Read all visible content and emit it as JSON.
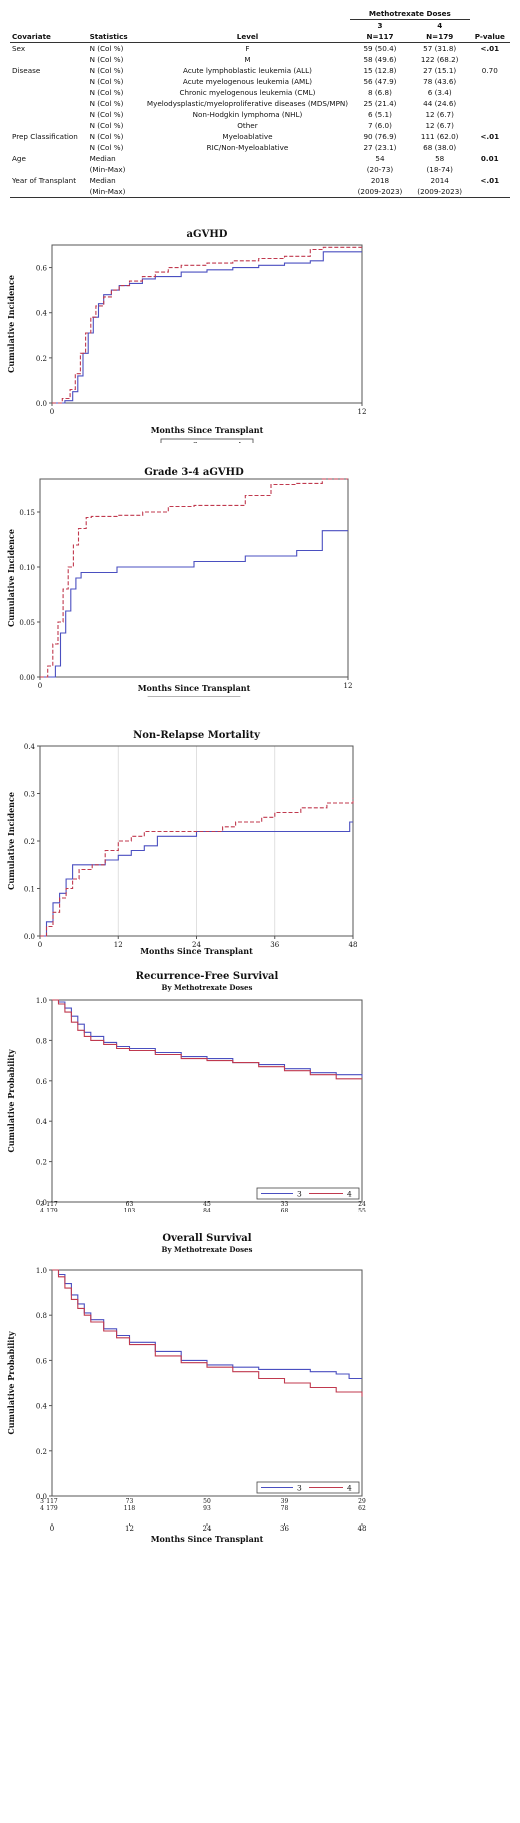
{
  "table": {
    "dose_header": "Methotrexate Doses",
    "col_covariate": "Covariate",
    "col_statistics": "Statistics",
    "col_level": "Level",
    "col_a_dose": "3",
    "col_a_n": "N=117",
    "col_b_dose": "4",
    "col_b_n": "N=179",
    "col_p": "P-value",
    "rows": [
      {
        "cov": "Sex",
        "stat": "N (Col %)",
        "level": "F",
        "a": "59 (50.4)",
        "b": "57 (31.8)",
        "p": "<.01",
        "pbold": true
      },
      {
        "cov": "",
        "stat": "N (Col %)",
        "level": "M",
        "a": "58 (49.6)",
        "b": "122 (68.2)",
        "p": "",
        "pbold": false
      },
      {
        "cov": "Disease",
        "stat": "N (Col %)",
        "level": "Acute lymphoblastic leukemia (ALL)",
        "a": "15 (12.8)",
        "b": "27 (15.1)",
        "p": "0.70",
        "pbold": false
      },
      {
        "cov": "",
        "stat": "N (Col %)",
        "level": "Acute myelogenous leukemia (AML)",
        "a": "56 (47.9)",
        "b": "78 (43.6)",
        "p": "",
        "pbold": false
      },
      {
        "cov": "",
        "stat": "N (Col %)",
        "level": "Chronic myelogenous leukemia (CML)",
        "a": "8 (6.8)",
        "b": "6 (3.4)",
        "p": "",
        "pbold": false
      },
      {
        "cov": "",
        "stat": "N (Col %)",
        "level": "Myelodysplastic/myeloproliferative diseases (MDS/MPN)",
        "a": "25 (21.4)",
        "b": "44 (24.6)",
        "p": "",
        "pbold": false
      },
      {
        "cov": "",
        "stat": "N (Col %)",
        "level": "Non-Hodgkin lymphoma (NHL)",
        "a": "6 (5.1)",
        "b": "12 (6.7)",
        "p": "",
        "pbold": false
      },
      {
        "cov": "",
        "stat": "N (Col %)",
        "level": "Other",
        "a": "7 (6.0)",
        "b": "12 (6.7)",
        "p": "",
        "pbold": false
      },
      {
        "cov": "Prep Classification",
        "stat": "N (Col %)",
        "level": "Myeloablative",
        "a": "90 (76.9)",
        "b": "111 (62.0)",
        "p": "<.01",
        "pbold": true
      },
      {
        "cov": "",
        "stat": "N (Col %)",
        "level": "RIC/Non-Myeloablative",
        "a": "27 (23.1)",
        "b": "68 (38.0)",
        "p": "",
        "pbold": false
      },
      {
        "cov": "Age",
        "stat": "Median",
        "level": "",
        "a": "54",
        "b": "58",
        "p": "0.01",
        "pbold": true
      },
      {
        "cov": "",
        "stat": "(Min-Max)",
        "level": "",
        "a": "(20-73)",
        "b": "(18-74)",
        "p": "",
        "pbold": false
      },
      {
        "cov": "Year of Transplant",
        "stat": "Median",
        "level": "",
        "a": "2018",
        "b": "2014",
        "p": "<.01",
        "pbold": true
      },
      {
        "cov": "",
        "stat": "(Min-Max)",
        "level": "",
        "a": "(2009-2023)",
        "b": "(2009-2023)",
        "p": "",
        "pbold": false
      }
    ]
  },
  "colors": {
    "dose3": "#4a4fc0",
    "dose4": "#c0394e",
    "gridline": "#d8d8d8"
  },
  "chart_data": [
    {
      "type": "line",
      "title": "aGVHD",
      "subtitle": "",
      "xlabel": "Months Since Transplant",
      "ylabel": "Cumulative Incidence",
      "xlim": [
        0,
        12
      ],
      "ylim": [
        0,
        0.7
      ],
      "xticks": [
        0,
        12
      ],
      "yticks": [
        0.0,
        0.2,
        0.4,
        0.6
      ],
      "ytick_labels": [
        "0.0",
        "0.2",
        "0.4",
        "0.6"
      ],
      "grid": false,
      "legend": {
        "placement": "below",
        "entries": [
          "3",
          "4"
        ]
      },
      "series": [
        {
          "name": "3",
          "style": "solid",
          "x": [
            0,
            0.5,
            0.8,
            1.0,
            1.2,
            1.4,
            1.6,
            1.8,
            2.0,
            2.3,
            2.6,
            3.0,
            3.5,
            4.0,
            5.0,
            6.0,
            7.0,
            8.0,
            9.0,
            10.0,
            10.5,
            12
          ],
          "y": [
            0,
            0.01,
            0.05,
            0.12,
            0.22,
            0.31,
            0.38,
            0.44,
            0.48,
            0.5,
            0.52,
            0.53,
            0.55,
            0.56,
            0.58,
            0.59,
            0.6,
            0.61,
            0.62,
            0.63,
            0.67,
            0.67
          ]
        },
        {
          "name": "4",
          "style": "dashed",
          "x": [
            0,
            0.4,
            0.7,
            0.9,
            1.1,
            1.3,
            1.5,
            1.7,
            2.0,
            2.3,
            2.6,
            3.0,
            3.5,
            4.0,
            4.5,
            5.0,
            6.0,
            7.0,
            8.0,
            9.0,
            10.0,
            10.5,
            12
          ],
          "y": [
            0,
            0.02,
            0.06,
            0.13,
            0.22,
            0.31,
            0.38,
            0.43,
            0.47,
            0.5,
            0.52,
            0.54,
            0.56,
            0.58,
            0.6,
            0.61,
            0.62,
            0.63,
            0.64,
            0.65,
            0.68,
            0.69,
            0.69
          ]
        }
      ]
    },
    {
      "type": "line",
      "title": "Grade 3-4 aGVHD",
      "subtitle": "",
      "xlabel": "Months Since Transplant",
      "ylabel": "Cumulative Incidence",
      "xlim": [
        0,
        12
      ],
      "ylim": [
        0,
        0.18
      ],
      "xticks": [
        0,
        12
      ],
      "yticks": [
        0.0,
        0.05,
        0.1,
        0.15
      ],
      "ytick_labels": [
        "0.00",
        "0.05",
        "0.10",
        "0.15"
      ],
      "grid": false,
      "legend": {
        "placement": "below",
        "entries": [
          "3",
          "4"
        ]
      },
      "series": [
        {
          "name": "3",
          "style": "solid",
          "x": [
            0,
            0.6,
            0.8,
            1.0,
            1.2,
            1.4,
            1.6,
            2.0,
            3.0,
            6.0,
            8.0,
            10.0,
            11.0,
            12
          ],
          "y": [
            0,
            0.01,
            0.04,
            0.06,
            0.08,
            0.09,
            0.095,
            0.095,
            0.1,
            0.105,
            0.11,
            0.115,
            0.133,
            0.133
          ]
        },
        {
          "name": "4",
          "style": "dashed",
          "x": [
            0,
            0.3,
            0.5,
            0.7,
            0.9,
            1.1,
            1.3,
            1.5,
            1.8,
            2.0,
            3.0,
            4.0,
            5.0,
            6.0,
            8.0,
            9.0,
            10.0,
            11.0,
            12
          ],
          "y": [
            0,
            0.01,
            0.03,
            0.05,
            0.08,
            0.1,
            0.12,
            0.135,
            0.145,
            0.146,
            0.147,
            0.15,
            0.155,
            0.156,
            0.165,
            0.175,
            0.176,
            0.18,
            0.18
          ]
        }
      ]
    },
    {
      "type": "line",
      "title": "Non-Relapse Mortality",
      "subtitle": "",
      "xlabel": "Months Since Transplant",
      "ylabel": "Cumulative Incidence",
      "xlim": [
        0,
        48
      ],
      "ylim": [
        0,
        0.4
      ],
      "xticks": [
        0,
        12,
        24,
        36,
        48
      ],
      "yticks": [
        0.0,
        0.1,
        0.2,
        0.3,
        0.4
      ],
      "ytick_labels": [
        "0.0",
        "0.1",
        "0.2",
        "0.3",
        "0.4"
      ],
      "grid": true,
      "legend": {
        "placement": "below",
        "entries": [
          "3",
          "4"
        ]
      },
      "series": [
        {
          "name": "3",
          "style": "solid",
          "x": [
            0,
            1,
            2,
            3,
            4,
            5,
            6,
            8,
            10,
            12,
            14,
            16,
            18,
            20,
            24,
            30,
            36,
            42,
            47.5,
            48
          ],
          "y": [
            0,
            0.03,
            0.07,
            0.09,
            0.12,
            0.15,
            0.15,
            0.15,
            0.16,
            0.17,
            0.18,
            0.19,
            0.21,
            0.21,
            0.22,
            0.22,
            0.22,
            0.22,
            0.24,
            0.24
          ]
        },
        {
          "name": "4",
          "style": "dashed",
          "x": [
            0,
            1,
            2,
            3,
            4,
            5,
            6,
            8,
            10,
            12,
            14,
            16,
            18,
            20,
            24,
            28,
            30,
            34,
            36,
            40,
            44,
            46,
            48
          ],
          "y": [
            0,
            0.02,
            0.05,
            0.08,
            0.1,
            0.12,
            0.14,
            0.15,
            0.18,
            0.2,
            0.21,
            0.22,
            0.22,
            0.22,
            0.22,
            0.23,
            0.24,
            0.25,
            0.26,
            0.27,
            0.28,
            0.28,
            0.29
          ]
        }
      ]
    },
    {
      "type": "line",
      "title": "Recurrence-Free Survival",
      "subtitle": "By Methotrexate Doses",
      "xlabel": "Months Since Transplant",
      "ylabel": "Cumulative Probability",
      "xlim": [
        0,
        48
      ],
      "ylim": [
        0,
        1
      ],
      "xticks": [
        0,
        12,
        24,
        36,
        48
      ],
      "yticks": [
        0.0,
        0.2,
        0.4,
        0.6,
        0.8,
        1.0
      ],
      "ytick_labels": [
        "0.0",
        "0.2",
        "0.4",
        "0.6",
        "0.8",
        "1.0"
      ],
      "grid": false,
      "legend": {
        "placement": "inside-bottom-right",
        "entries": [
          "3",
          "4"
        ]
      },
      "risk_table": {
        "rows": [
          {
            "label": "3",
            "counts": [
              "117",
              "63",
              "45",
              "33",
              "24"
            ]
          },
          {
            "label": "4",
            "counts": [
              "179",
              "103",
              "84",
              "68",
              "55"
            ]
          }
        ]
      },
      "series": [
        {
          "name": "3",
          "style": "solid",
          "x": [
            0,
            1,
            2,
            3,
            4,
            5,
            6,
            8,
            10,
            12,
            16,
            20,
            24,
            28,
            32,
            36,
            40,
            44,
            48
          ],
          "y": [
            1.0,
            0.99,
            0.96,
            0.92,
            0.88,
            0.84,
            0.82,
            0.79,
            0.77,
            0.76,
            0.74,
            0.72,
            0.71,
            0.69,
            0.68,
            0.66,
            0.64,
            0.63,
            0.62
          ]
        },
        {
          "name": "4",
          "style": "solid",
          "x": [
            0,
            1,
            2,
            3,
            4,
            5,
            6,
            8,
            10,
            12,
            16,
            20,
            24,
            28,
            32,
            36,
            40,
            44,
            48
          ],
          "y": [
            1.0,
            0.98,
            0.94,
            0.89,
            0.85,
            0.82,
            0.8,
            0.78,
            0.76,
            0.75,
            0.73,
            0.71,
            0.7,
            0.69,
            0.67,
            0.65,
            0.63,
            0.61,
            0.61
          ]
        }
      ]
    },
    {
      "type": "line",
      "title": "Overall Survival",
      "subtitle": "By Methotrexate Doses",
      "xlabel": "Months Since Transplant",
      "ylabel": "Cumulative Probability",
      "xlim": [
        0,
        48
      ],
      "ylim": [
        0,
        1
      ],
      "xticks": [
        0,
        12,
        24,
        36,
        48
      ],
      "yticks": [
        0.0,
        0.2,
        0.4,
        0.6,
        0.8,
        1.0
      ],
      "ytick_labels": [
        "0.0",
        "0.2",
        "0.4",
        "0.6",
        "0.8",
        "1.0"
      ],
      "grid": false,
      "legend": {
        "placement": "inside-bottom-right",
        "entries": [
          "3",
          "4"
        ]
      },
      "risk_table": {
        "rows": [
          {
            "label": "3",
            "counts": [
              "117",
              "73",
              "50",
              "39",
              "29"
            ]
          },
          {
            "label": "4",
            "counts": [
              "179",
              "118",
              "93",
              "78",
              "62"
            ]
          }
        ]
      },
      "series": [
        {
          "name": "3",
          "style": "solid",
          "x": [
            0,
            1,
            2,
            3,
            4,
            5,
            6,
            8,
            10,
            12,
            16,
            20,
            24,
            28,
            32,
            36,
            40,
            44,
            46,
            48
          ],
          "y": [
            1.0,
            0.98,
            0.94,
            0.89,
            0.85,
            0.81,
            0.78,
            0.74,
            0.71,
            0.68,
            0.64,
            0.6,
            0.58,
            0.57,
            0.56,
            0.56,
            0.55,
            0.54,
            0.52,
            0.52
          ]
        },
        {
          "name": "4",
          "style": "solid",
          "x": [
            0,
            1,
            2,
            3,
            4,
            5,
            6,
            8,
            10,
            12,
            16,
            20,
            24,
            28,
            32,
            36,
            40,
            44,
            48
          ],
          "y": [
            1.0,
            0.97,
            0.92,
            0.87,
            0.83,
            0.8,
            0.77,
            0.73,
            0.7,
            0.67,
            0.62,
            0.59,
            0.57,
            0.55,
            0.52,
            0.5,
            0.48,
            0.46,
            0.44
          ]
        }
      ]
    }
  ]
}
